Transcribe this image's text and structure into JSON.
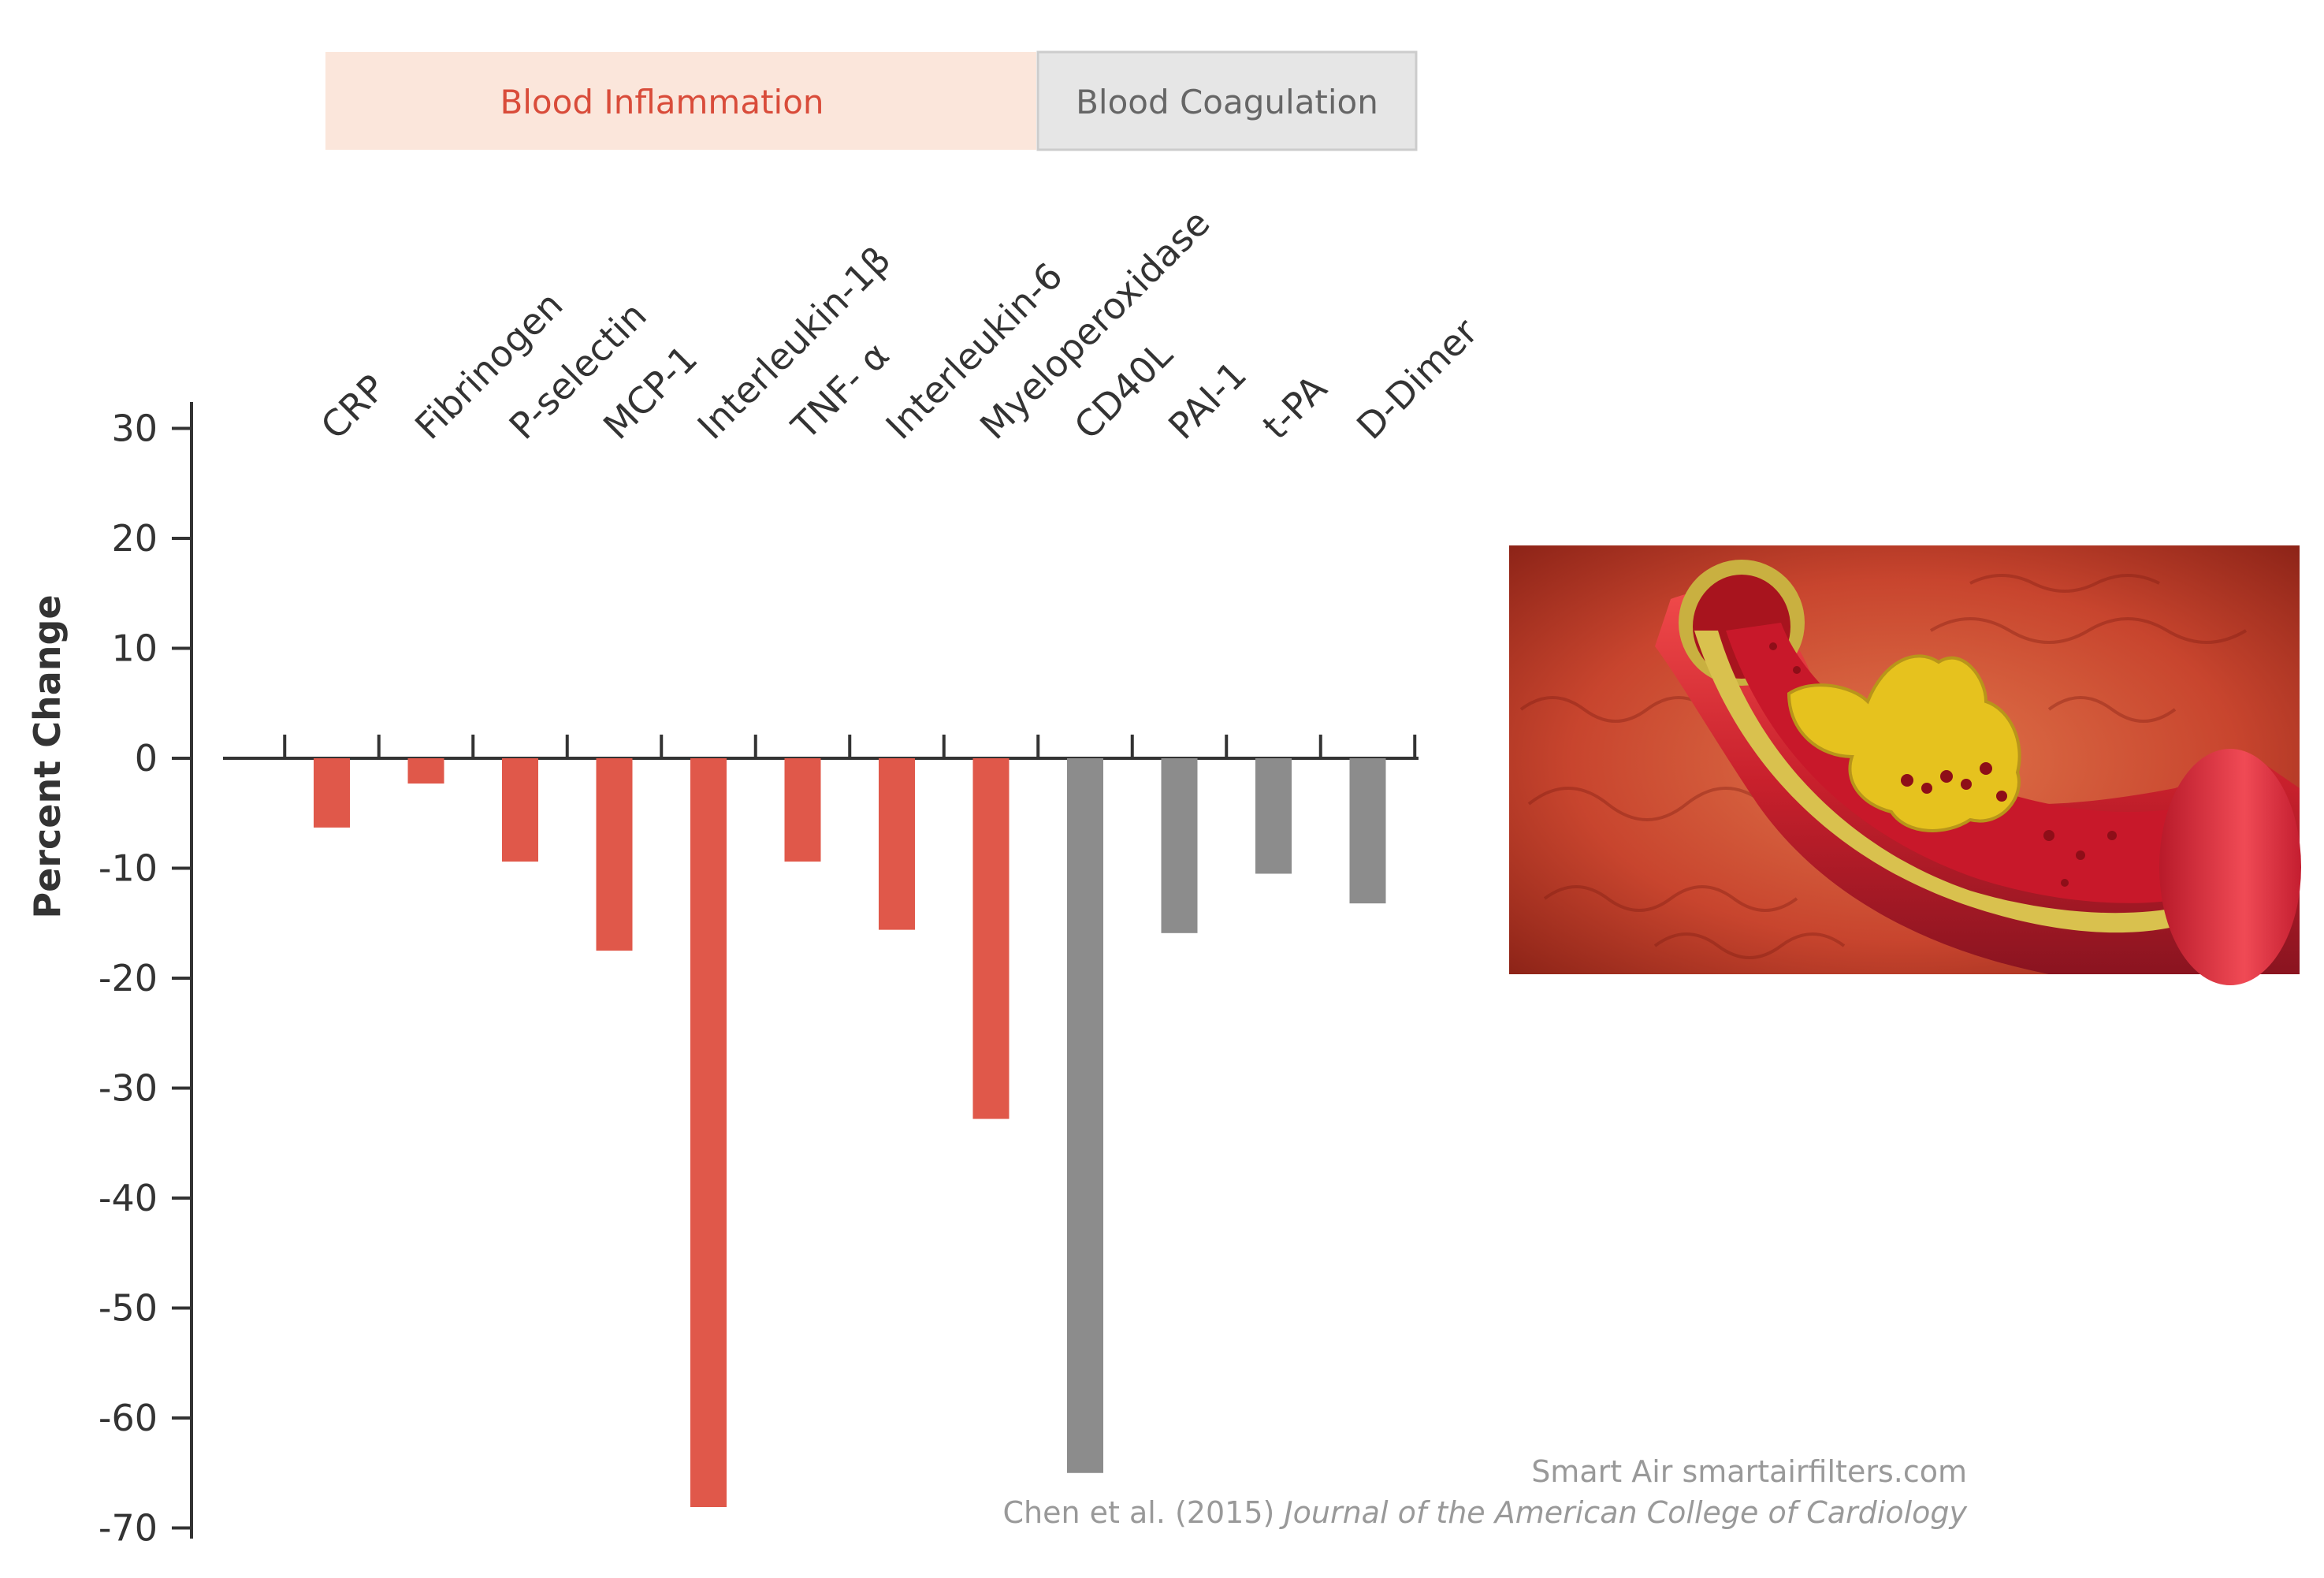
{
  "colors": {
    "inflammation": "#E0584A",
    "coagulation": "#8C8C8C",
    "inflammation_bg": "#FBE6DB",
    "coagulation_bg": "#E6E6E6",
    "inflammation_text": "#D94C3A",
    "coagulation_text": "#666666",
    "axis": "#333333"
  },
  "legend": {
    "inflammation_label": "Blood Inflammation",
    "coagulation_label": "Blood Coagulation"
  },
  "image": {
    "description_icon": "artery-plaque-illustration"
  },
  "credits": {
    "line1": "Smart Air smartairfilters.com",
    "line2_plain": "Chen et al. (2015) ",
    "line2_italic": "Journal of the American College of Cardiology"
  },
  "chart_data": {
    "type": "bar",
    "ylabel": "Percent Change",
    "xlabel": "",
    "ylim": [
      -70,
      30
    ],
    "yticks": [
      30,
      20,
      10,
      0,
      -10,
      -20,
      -30,
      -40,
      -50,
      -60,
      -70
    ],
    "grid": false,
    "categories": [
      "CRP",
      "Fibrinogen",
      "P-selectin",
      "MCP-1",
      "Interleukin-1β",
      "TNF- α",
      "Interleukin-6",
      "Myeloperoxidase",
      "CD40L",
      "PAI-1",
      "t-PA",
      "D-Dimer"
    ],
    "values": [
      -6.3,
      -2.3,
      -9.4,
      -17.5,
      -68.1,
      -9.4,
      -15.6,
      -32.8,
      -65.0,
      -15.9,
      -10.5,
      -13.2
    ],
    "groups": [
      "Blood Inflammation",
      "Blood Inflammation",
      "Blood Inflammation",
      "Blood Inflammation",
      "Blood Inflammation",
      "Blood Inflammation",
      "Blood Inflammation",
      "Blood Inflammation",
      "Blood Coagulation",
      "Blood Coagulation",
      "Blood Coagulation",
      "Blood Coagulation"
    ]
  }
}
